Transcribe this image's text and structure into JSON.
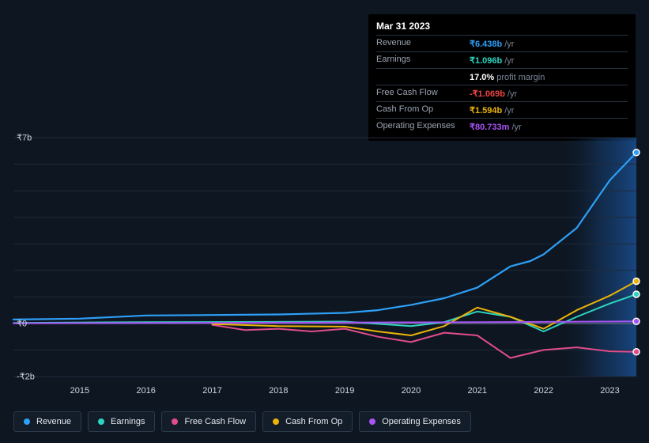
{
  "tooltip": {
    "date": "Mar 31 2023",
    "rows": [
      {
        "label": "Revenue",
        "value": "₹6.438b",
        "suffix": "/yr",
        "color": "#2e9ff7"
      },
      {
        "label": "Earnings",
        "value": "₹1.096b",
        "suffix": "/yr",
        "color": "#2dd4bf"
      },
      {
        "label": "",
        "value": "17.0%",
        "suffix": "profit margin",
        "color": "#ffffff"
      },
      {
        "label": "Free Cash Flow",
        "value": "-₹1.069b",
        "suffix": "/yr",
        "color": "#ef4444"
      },
      {
        "label": "Cash From Op",
        "value": "₹1.594b",
        "suffix": "/yr",
        "color": "#eab308"
      },
      {
        "label": "Operating Expenses",
        "value": "₹80.733m",
        "suffix": "/yr",
        "color": "#a855f7"
      }
    ]
  },
  "chart": {
    "type": "line",
    "background_color": "#0e1621",
    "grid_color": "#1f2a3a",
    "zero_line_color": "#5a6677",
    "highlight_band": {
      "from_year": 2022.3,
      "to_year": 2023.4,
      "color1": "#1a3a6b",
      "color2": "#0e1621"
    },
    "x": {
      "min": 2014,
      "max": 2023.4,
      "ticks": [
        2015,
        2016,
        2017,
        2018,
        2019,
        2020,
        2021,
        2022,
        2023
      ]
    },
    "y": {
      "min": -2,
      "max": 7,
      "ticks": [
        {
          "v": 7,
          "label": "₹7b"
        },
        {
          "v": 0,
          "label": "₹0"
        },
        {
          "v": -2,
          "label": "-₹2b"
        }
      ]
    },
    "series": [
      {
        "name": "Revenue",
        "color": "#2e9ff7",
        "width": 2.2,
        "points": [
          [
            2014,
            0.15
          ],
          [
            2015,
            0.18
          ],
          [
            2016,
            0.3
          ],
          [
            2017,
            0.32
          ],
          [
            2018,
            0.34
          ],
          [
            2019,
            0.4
          ],
          [
            2019.5,
            0.5
          ],
          [
            2020,
            0.7
          ],
          [
            2020.5,
            0.95
          ],
          [
            2021,
            1.35
          ],
          [
            2021.5,
            2.15
          ],
          [
            2021.8,
            2.35
          ],
          [
            2022,
            2.6
          ],
          [
            2022.5,
            3.6
          ],
          [
            2023,
            5.4
          ],
          [
            2023.4,
            6.44
          ]
        ]
      },
      {
        "name": "Earnings",
        "color": "#2dd4bf",
        "width": 2,
        "points": [
          [
            2014,
            0.02
          ],
          [
            2016,
            0.05
          ],
          [
            2018,
            0.06
          ],
          [
            2019,
            0.07
          ],
          [
            2020,
            -0.1
          ],
          [
            2020.5,
            0.05
          ],
          [
            2021,
            0.45
          ],
          [
            2021.5,
            0.25
          ],
          [
            2022,
            -0.3
          ],
          [
            2022.5,
            0.25
          ],
          [
            2023,
            0.75
          ],
          [
            2023.4,
            1.1
          ]
        ]
      },
      {
        "name": "Free Cash Flow",
        "color": "#e04d8b",
        "width": 2,
        "points": [
          [
            2017,
            -0.05
          ],
          [
            2017.5,
            -0.25
          ],
          [
            2018,
            -0.2
          ],
          [
            2018.5,
            -0.3
          ],
          [
            2019,
            -0.2
          ],
          [
            2019.5,
            -0.5
          ],
          [
            2020,
            -0.7
          ],
          [
            2020.5,
            -0.35
          ],
          [
            2021,
            -0.45
          ],
          [
            2021.5,
            -1.3
          ],
          [
            2022,
            -1.0
          ],
          [
            2022.5,
            -0.9
          ],
          [
            2023,
            -1.05
          ],
          [
            2023.4,
            -1.07
          ]
        ]
      },
      {
        "name": "Cash From Op",
        "color": "#eab308",
        "width": 2,
        "points": [
          [
            2017,
            -0.02
          ],
          [
            2018,
            -0.1
          ],
          [
            2019,
            -0.12
          ],
          [
            2019.5,
            -0.3
          ],
          [
            2020,
            -0.45
          ],
          [
            2020.5,
            -0.1
          ],
          [
            2021,
            0.6
          ],
          [
            2021.5,
            0.25
          ],
          [
            2022,
            -0.2
          ],
          [
            2022.5,
            0.5
          ],
          [
            2023,
            1.05
          ],
          [
            2023.4,
            1.59
          ]
        ]
      },
      {
        "name": "Operating Expenses",
        "color": "#a855f7",
        "width": 2,
        "points": [
          [
            2014,
            0.01
          ],
          [
            2016,
            0.02
          ],
          [
            2018,
            0.03
          ],
          [
            2020,
            0.04
          ],
          [
            2021,
            0.05
          ],
          [
            2022,
            0.06
          ],
          [
            2023,
            0.07
          ],
          [
            2023.4,
            0.08
          ]
        ]
      }
    ],
    "end_markers_x": 2023.4
  },
  "legend": [
    {
      "label": "Revenue",
      "color": "#2e9ff7"
    },
    {
      "label": "Earnings",
      "color": "#2dd4bf"
    },
    {
      "label": "Free Cash Flow",
      "color": "#e04d8b"
    },
    {
      "label": "Cash From Op",
      "color": "#eab308"
    },
    {
      "label": "Operating Expenses",
      "color": "#a855f7"
    }
  ]
}
